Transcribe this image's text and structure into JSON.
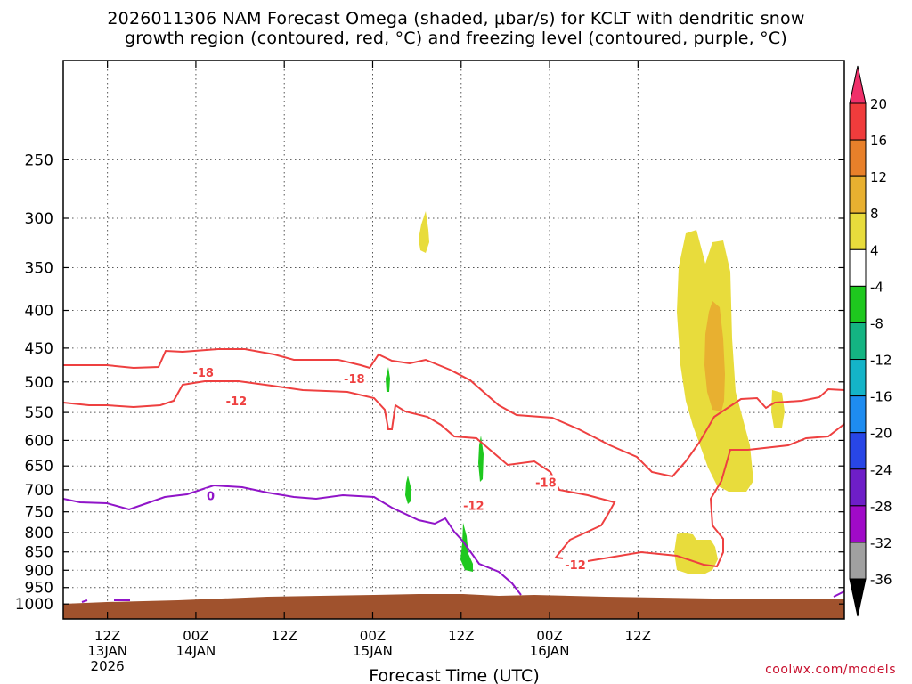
{
  "chart_data": {
    "type": "heatmap",
    "title_line1": "2026011306 NAM Forecast Omega (shaded, μbar/s) for KCLT with dendritic snow",
    "title_line2": "growth region (contoured, red, °C) and freezing level (contoured, purple, °C)",
    "xlabel": "Forecast Time (UTC)",
    "ylabel": "",
    "x_range_hours": [
      6,
      112
    ],
    "y_range_hpa": [
      1040,
      180
    ],
    "y_ticks": [
      250,
      300,
      350,
      400,
      450,
      500,
      550,
      600,
      650,
      700,
      750,
      800,
      850,
      900,
      950,
      1000
    ],
    "x_ticks": [
      {
        "hour": 12,
        "lines": [
          "12Z",
          "13JAN",
          "2026"
        ]
      },
      {
        "hour": 24,
        "lines": [
          "00Z",
          "14JAN"
        ]
      },
      {
        "hour": 36,
        "lines": [
          "12Z"
        ]
      },
      {
        "hour": 48,
        "lines": [
          "00Z",
          "15JAN"
        ]
      },
      {
        "hour": 60,
        "lines": [
          "12Z"
        ]
      },
      {
        "hour": 72,
        "lines": [
          "00Z",
          "16JAN"
        ]
      },
      {
        "hour": 84,
        "lines": [
          "12Z"
        ]
      }
    ],
    "colorbar": {
      "labels": [
        "20",
        "16",
        "12",
        "8",
        "4",
        "-4",
        "-8",
        "-12",
        "-16",
        "-20",
        "-24",
        "-28",
        "-32",
        "-36"
      ],
      "colors": [
        "#f0306a",
        "#f03c3c",
        "#e8802a",
        "#e8b030",
        "#e8dc3c",
        "#ffffff",
        "#1ec81e",
        "#14b482",
        "#14b4c8",
        "#1e8cf0",
        "#2846e6",
        "#6e1ec8",
        "#a00ac8",
        "#a0a0a0",
        "#000000"
      ]
    },
    "contour_labels": [
      {
        "text": "-18",
        "hour": 25,
        "p": 485,
        "color": "#ee4040"
      },
      {
        "text": "-12",
        "hour": 29.5,
        "p": 530,
        "color": "#ee4040"
      },
      {
        "text": "-18",
        "hour": 45.5,
        "p": 495,
        "color": "#ee4040"
      },
      {
        "text": "-12",
        "hour": 61.7,
        "p": 735,
        "color": "#ee4040"
      },
      {
        "text": "-18",
        "hour": 71.5,
        "p": 684,
        "color": "#ee4040"
      },
      {
        "text": "-12",
        "hour": 75.5,
        "p": 885,
        "color": "#ee4040"
      },
      {
        "text": "0",
        "hour": 26,
        "p": 713,
        "color": "#9014c8"
      }
    ]
  },
  "credit": "coolwx.com/models"
}
